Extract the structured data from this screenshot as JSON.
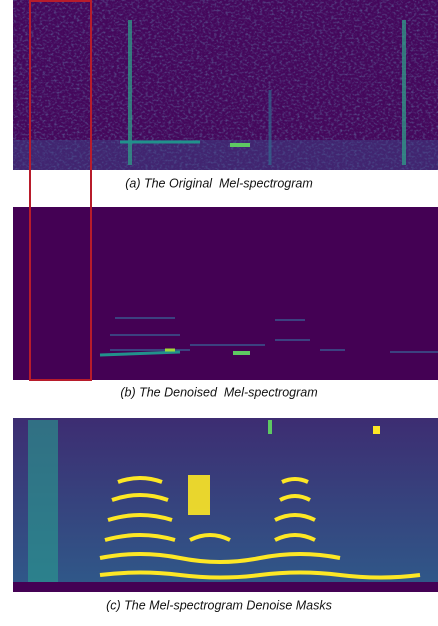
{
  "figure": {
    "panels": [
      {
        "caption": "(a) The Original  Mel-spectrogram"
      },
      {
        "caption": "(b) The Denoised  Mel-spectrogram"
      },
      {
        "caption": "(c) The Mel-spectrogram Denoise Masks"
      }
    ]
  }
}
